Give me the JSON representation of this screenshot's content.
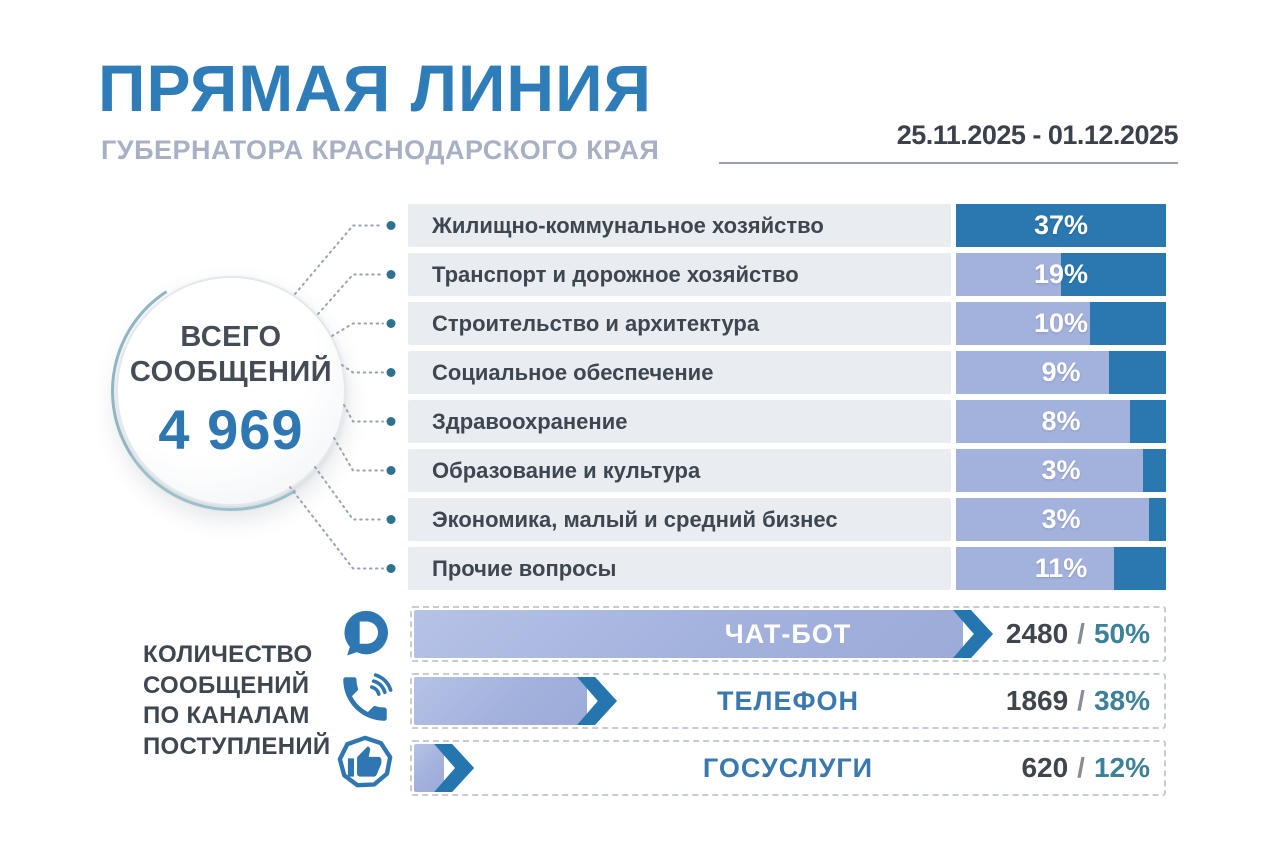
{
  "header": {
    "title": "ПРЯМАЯ ЛИНИЯ",
    "subtitle": "ГУБЕРНАТОРА КРАСНОДАРСКОГО КРАЯ",
    "date_range": "25.11.2025 - 01.12.2025"
  },
  "total_badge": {
    "line1": "ВСЕГО",
    "line2": "СООБЩЕНИЙ",
    "value": "4 969"
  },
  "channels_caption": {
    "line1": "КОЛИЧЕСТВО",
    "line2": "СООБЩЕНИЙ",
    "line3": "ПО КАНАЛАМ",
    "line4": "ПОСТУПЛЕНИЙ"
  },
  "chart_data": [
    {
      "type": "bar",
      "orientation": "horizontal",
      "unit": "%",
      "grid": false,
      "categories": [
        "Жилищно-коммунальное хозяйство",
        "Транспорт и дорожное хозяйство",
        "Строительство и архитектура",
        "Социальное обеспечение",
        "Здравоохранение",
        "Образование и культура",
        "Экономика, малый и средний бизнес",
        "Прочие вопросы"
      ],
      "values": [
        37,
        19,
        10,
        9,
        8,
        3,
        3,
        11
      ],
      "value_labels": [
        "37%",
        "19%",
        "10%",
        "9%",
        "8%",
        "3%",
        "3%",
        "11%"
      ],
      "bar_color": "#2b78b0",
      "track_color": "#a3b1dd",
      "fill_percents": [
        100,
        50,
        36,
        27,
        17,
        11,
        8,
        25
      ]
    },
    {
      "type": "bar",
      "orientation": "horizontal",
      "categories": [
        "ЧАТ-БОТ",
        "ТЕЛЕФОН",
        "ГОСУСЛУГИ"
      ],
      "counts": [
        "2480",
        "1869",
        "620"
      ],
      "percents": [
        "50%",
        "38%",
        "12%"
      ],
      "value_separator": "/",
      "icons": [
        "chat-bot-icon",
        "phone-icon",
        "gosuslugi-icon"
      ],
      "bar_color": "#a3b1dd",
      "arrow_color": "#2576ae",
      "fill_percents": [
        77,
        27,
        8
      ]
    }
  ],
  "colors": {
    "title_blue": "#2e7cb8",
    "subtitle_gray": "#a7b1c3",
    "dark_text": "#3e4650",
    "bar_dark_blue": "#2b78b0",
    "bar_periwinkle": "#a3b1dd",
    "row_track_gray": "#e9edf2",
    "percent_teal": "#3c8099",
    "icon_blue": "#2e77b3",
    "connector_gray": "#9aa3ae",
    "connector_dot": "#2d7390"
  }
}
